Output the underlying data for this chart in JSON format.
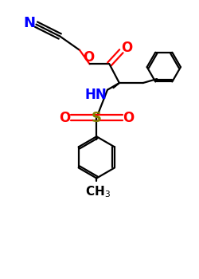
{
  "bg_color": "#ffffff",
  "bond_color": "#000000",
  "N_color": "#0000ff",
  "O_color": "#ff0000",
  "S_color": "#808000",
  "figsize": [
    2.5,
    3.5
  ],
  "dpi": 100,
  "xlim": [
    0,
    10
  ],
  "ylim": [
    0,
    14
  ]
}
